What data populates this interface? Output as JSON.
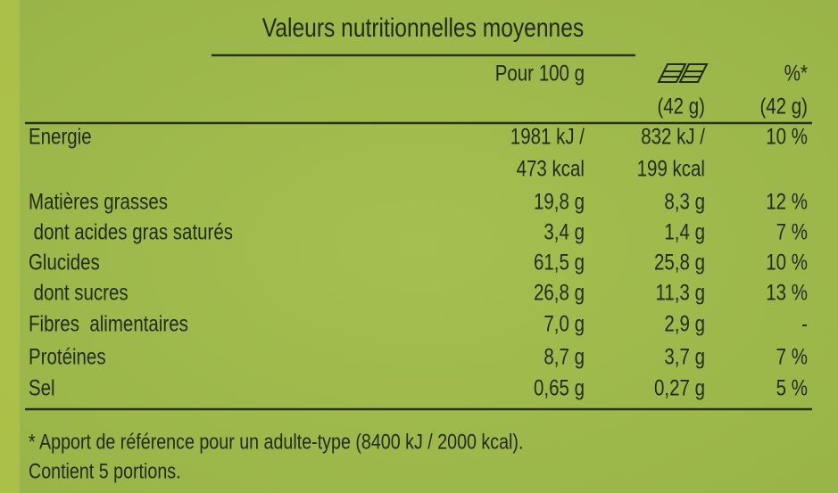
{
  "header": {
    "title": "Valeurs nutritionnelles moyennes"
  },
  "table": {
    "columns": [
      "Pour 100 g",
      "(42 g)",
      "%*"
    ],
    "subcolumns": [
      "(42 g)"
    ],
    "rows": [
      [
        "Energie",
        [
          "1981 kJ /",
          "473 kcal"
        ],
        [
          "832 kJ /",
          "199 kcal"
        ],
        "10 %"
      ],
      [
        "Matières grasses",
        "19,8 g",
        "8,3 g",
        "12 %"
      ],
      [
        " dont acides gras saturés",
        "3,4 g",
        "1,4 g",
        "7 %"
      ],
      [
        "Glucides",
        "61,5 g",
        "25,8 g",
        "10 %"
      ],
      [
        " dont sucres",
        "26,8 g",
        "11,3 g",
        "13 %"
      ],
      [
        "Fibres  alimentaires",
        "7,0 g",
        "2,9 g",
        "-"
      ],
      [
        "Protéines",
        "8,7 g",
        "3,7 g",
        "7 %"
      ],
      [
        "Sel",
        "0,65 g",
        "0,27 g",
        "5 %"
      ]
    ]
  },
  "footnotes": [
    "* Apport de référence pour un adulte-type (8400 kJ / 2000 kcal).",
    "Contient 5 portions."
  ]
}
